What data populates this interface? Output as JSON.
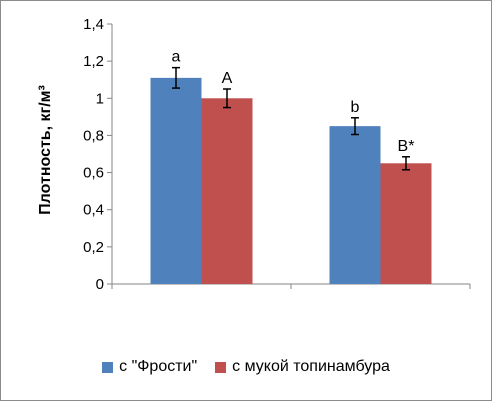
{
  "chart_data": {
    "type": "bar",
    "categories": [
      "",
      ""
    ],
    "series": [
      {
        "name": "с \"Фрости\"",
        "values": [
          1.11,
          0.85
        ],
        "errors": [
          0.055,
          0.045
        ],
        "labels": [
          "a",
          "b"
        ],
        "color": "#4f81bd"
      },
      {
        "name": "с мукой топинамбура",
        "values": [
          1.0,
          0.65
        ],
        "errors": [
          0.05,
          0.035
        ],
        "labels": [
          "A",
          "B*"
        ],
        "color": "#c0504d"
      }
    ],
    "ylabel": "Плотность, кг/м³",
    "ylim": [
      0,
      1.4
    ],
    "yticks": [
      0,
      0.2,
      0.4,
      0.6,
      0.8,
      1,
      1.2,
      1.4
    ],
    "ytick_labels": [
      "0",
      "0,2",
      "0,4",
      "0,6",
      "0,8",
      "1",
      "1,2",
      "1,4"
    ],
    "grid": false,
    "legend_position": "bottom"
  }
}
